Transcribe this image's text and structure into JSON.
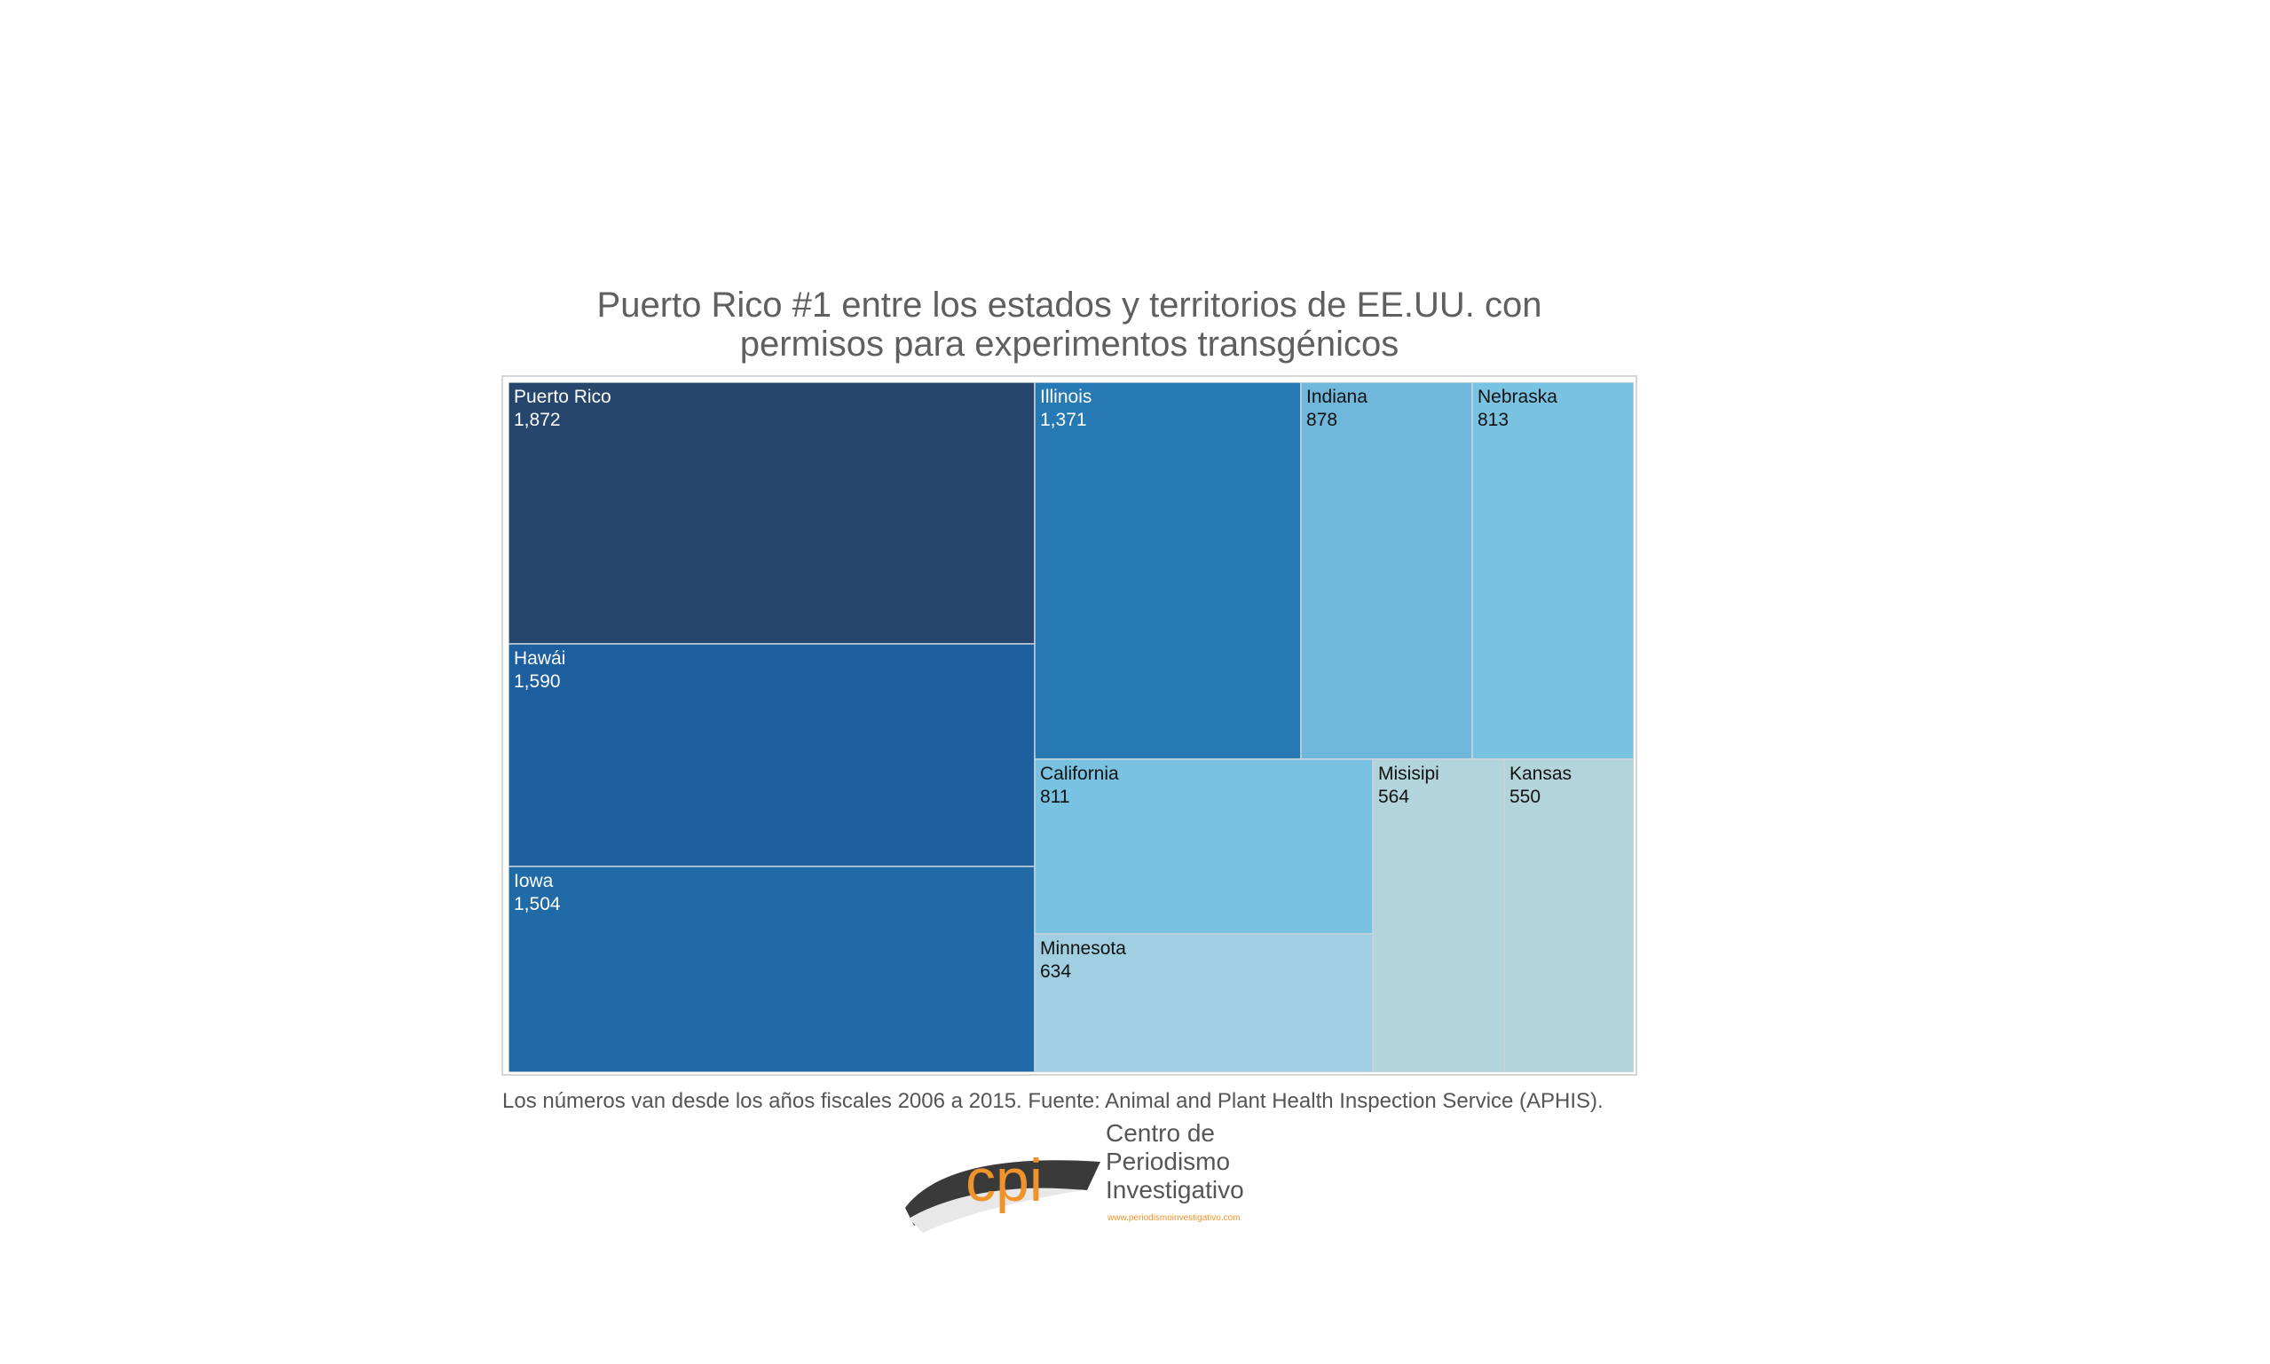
{
  "title": {
    "line1": "Puerto Rico #1 entre los estados y territorios de EE.UU. con",
    "line2": "permisos para experimentos transgénicos"
  },
  "footnote": "Los números van desde los años fiscales 2006 a 2015. Fuente: Animal and Plant Health Inspection Service (APHIS).",
  "logo": {
    "mark": "cpi",
    "line1": "Centro de",
    "line2": "Periodismo",
    "line3": "Investigativo",
    "url": "www.periodismoinvestigativo.com"
  },
  "chart_data": {
    "type": "treemap",
    "items": [
      {
        "label": "Puerto Rico",
        "value": 1872,
        "display": "1,872",
        "color": "#26466e",
        "text_color": "#ffffff"
      },
      {
        "label": "Hawái",
        "value": 1590,
        "display": "1,590",
        "color": "#1e5fa0",
        "text_color": "#ffffff"
      },
      {
        "label": "Iowa",
        "value": 1504,
        "display": "1,504",
        "color": "#1f6aa7",
        "text_color": "#ffffff"
      },
      {
        "label": "Illinois",
        "value": 1371,
        "display": "1,371",
        "color": "#2679b3",
        "text_color": "#ffffff"
      },
      {
        "label": "Indiana",
        "value": 878,
        "display": "878",
        "color": "#6fb8dc",
        "text_color": "#111111"
      },
      {
        "label": "Nebraska",
        "value": 813,
        "display": "813",
        "color": "#79c2e1",
        "text_color": "#111111"
      },
      {
        "label": "California",
        "value": 811,
        "display": "811",
        "color": "#79c2e1",
        "text_color": "#111111"
      },
      {
        "label": "Minnesota",
        "value": 634,
        "display": "634",
        "color": "#9fcfe0",
        "text_color": "#111111"
      },
      {
        "label": "Misisipi",
        "value": 564,
        "display": "564",
        "color": "#b2d4dc",
        "text_color": "#111111"
      },
      {
        "label": "Kansas",
        "value": 550,
        "display": "550",
        "color": "#b4d4db",
        "text_color": "#111111"
      }
    ]
  }
}
